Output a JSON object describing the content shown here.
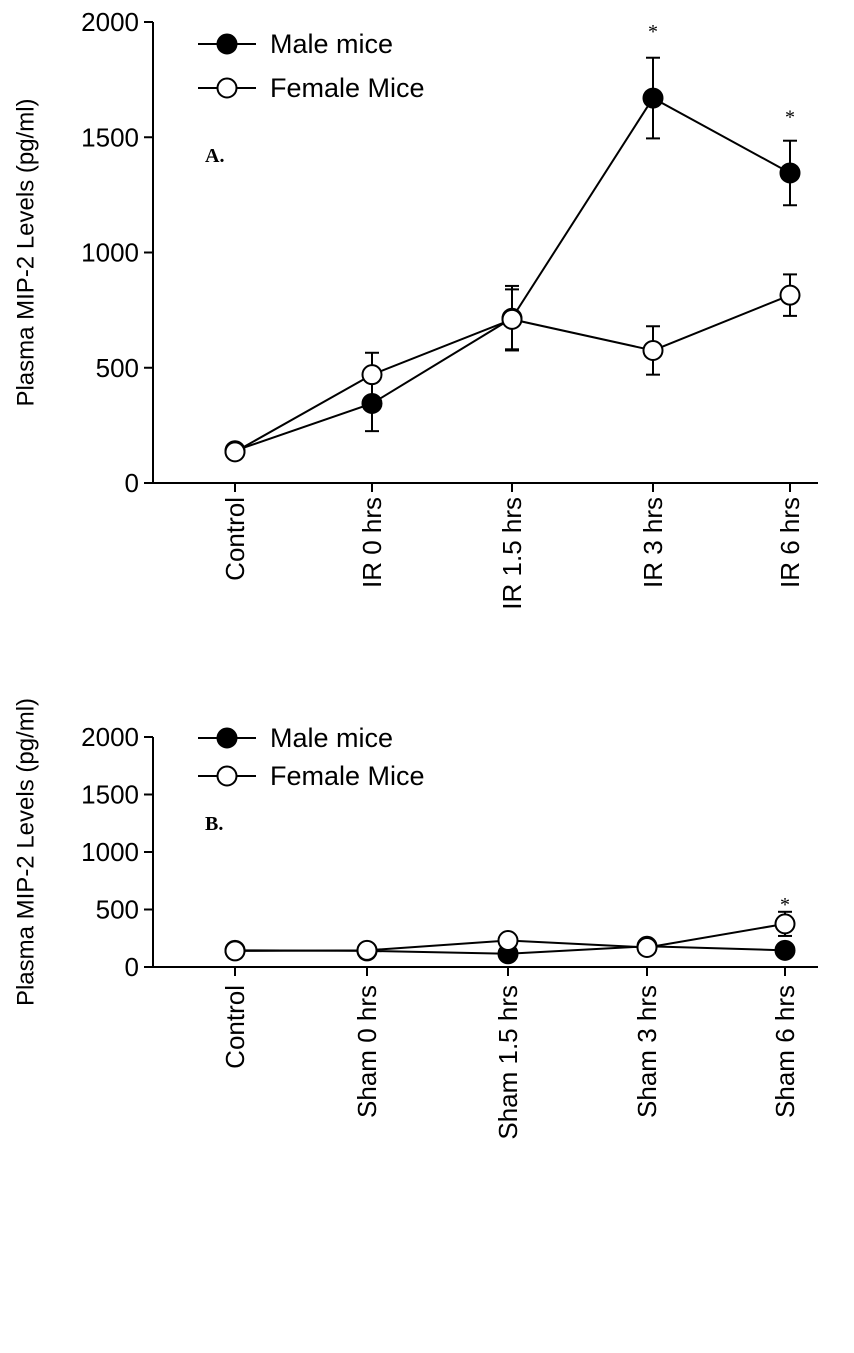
{
  "chart_data": [
    {
      "type": "line",
      "panel_label": "A.",
      "ylabel": "Plasma MIP-2 Levels (pg/ml)",
      "xlabel": "",
      "ylim": [
        0,
        2000
      ],
      "yticks": [
        0,
        500,
        1000,
        1500,
        2000
      ],
      "categories": [
        "Control",
        "IR 0 hrs",
        "IR 1.5 hrs",
        "IR 3 hrs",
        "IR 6 hrs"
      ],
      "legend_position": "top-left",
      "series": [
        {
          "name": "Male mice",
          "marker": "filled-circle",
          "color": "#000000",
          "values": [
            140,
            345,
            715,
            1670,
            1345
          ],
          "error": [
            20,
            120,
            140,
            175,
            140
          ]
        },
        {
          "name": "Female Mice",
          "marker": "open-circle",
          "color": "#000000",
          "values": [
            135,
            470,
            710,
            575,
            815
          ],
          "error": [
            15,
            95,
            130,
            105,
            90
          ]
        }
      ],
      "annotations": [
        {
          "category_index": 3,
          "text": "*",
          "y": 1965
        },
        {
          "category_index": 4,
          "text": "*",
          "y": 1595
        }
      ]
    },
    {
      "type": "line",
      "panel_label": "B.",
      "ylabel": "Plasma MIP-2 Levels (pg/ml)",
      "xlabel": "",
      "ylim": [
        0,
        2000
      ],
      "yticks": [
        0,
        500,
        1000,
        1500,
        2000
      ],
      "categories": [
        "Control",
        "Sham 0 hrs",
        "Sham 1.5 hrs",
        "Sham 3 hrs",
        "Sham 6 hrs"
      ],
      "legend_position": "top-left",
      "series": [
        {
          "name": "Male mice",
          "marker": "filled-circle",
          "color": "#000000",
          "values": [
            145,
            140,
            115,
            180,
            145
          ],
          "error": [
            15,
            15,
            15,
            40,
            15
          ]
        },
        {
          "name": "Female Mice",
          "marker": "open-circle",
          "color": "#000000",
          "values": [
            140,
            145,
            230,
            170,
            375
          ],
          "error": [
            12,
            12,
            60,
            35,
            105
          ]
        }
      ],
      "annotations": [
        {
          "category_index": 4,
          "text": "*",
          "y": 555
        }
      ]
    }
  ]
}
